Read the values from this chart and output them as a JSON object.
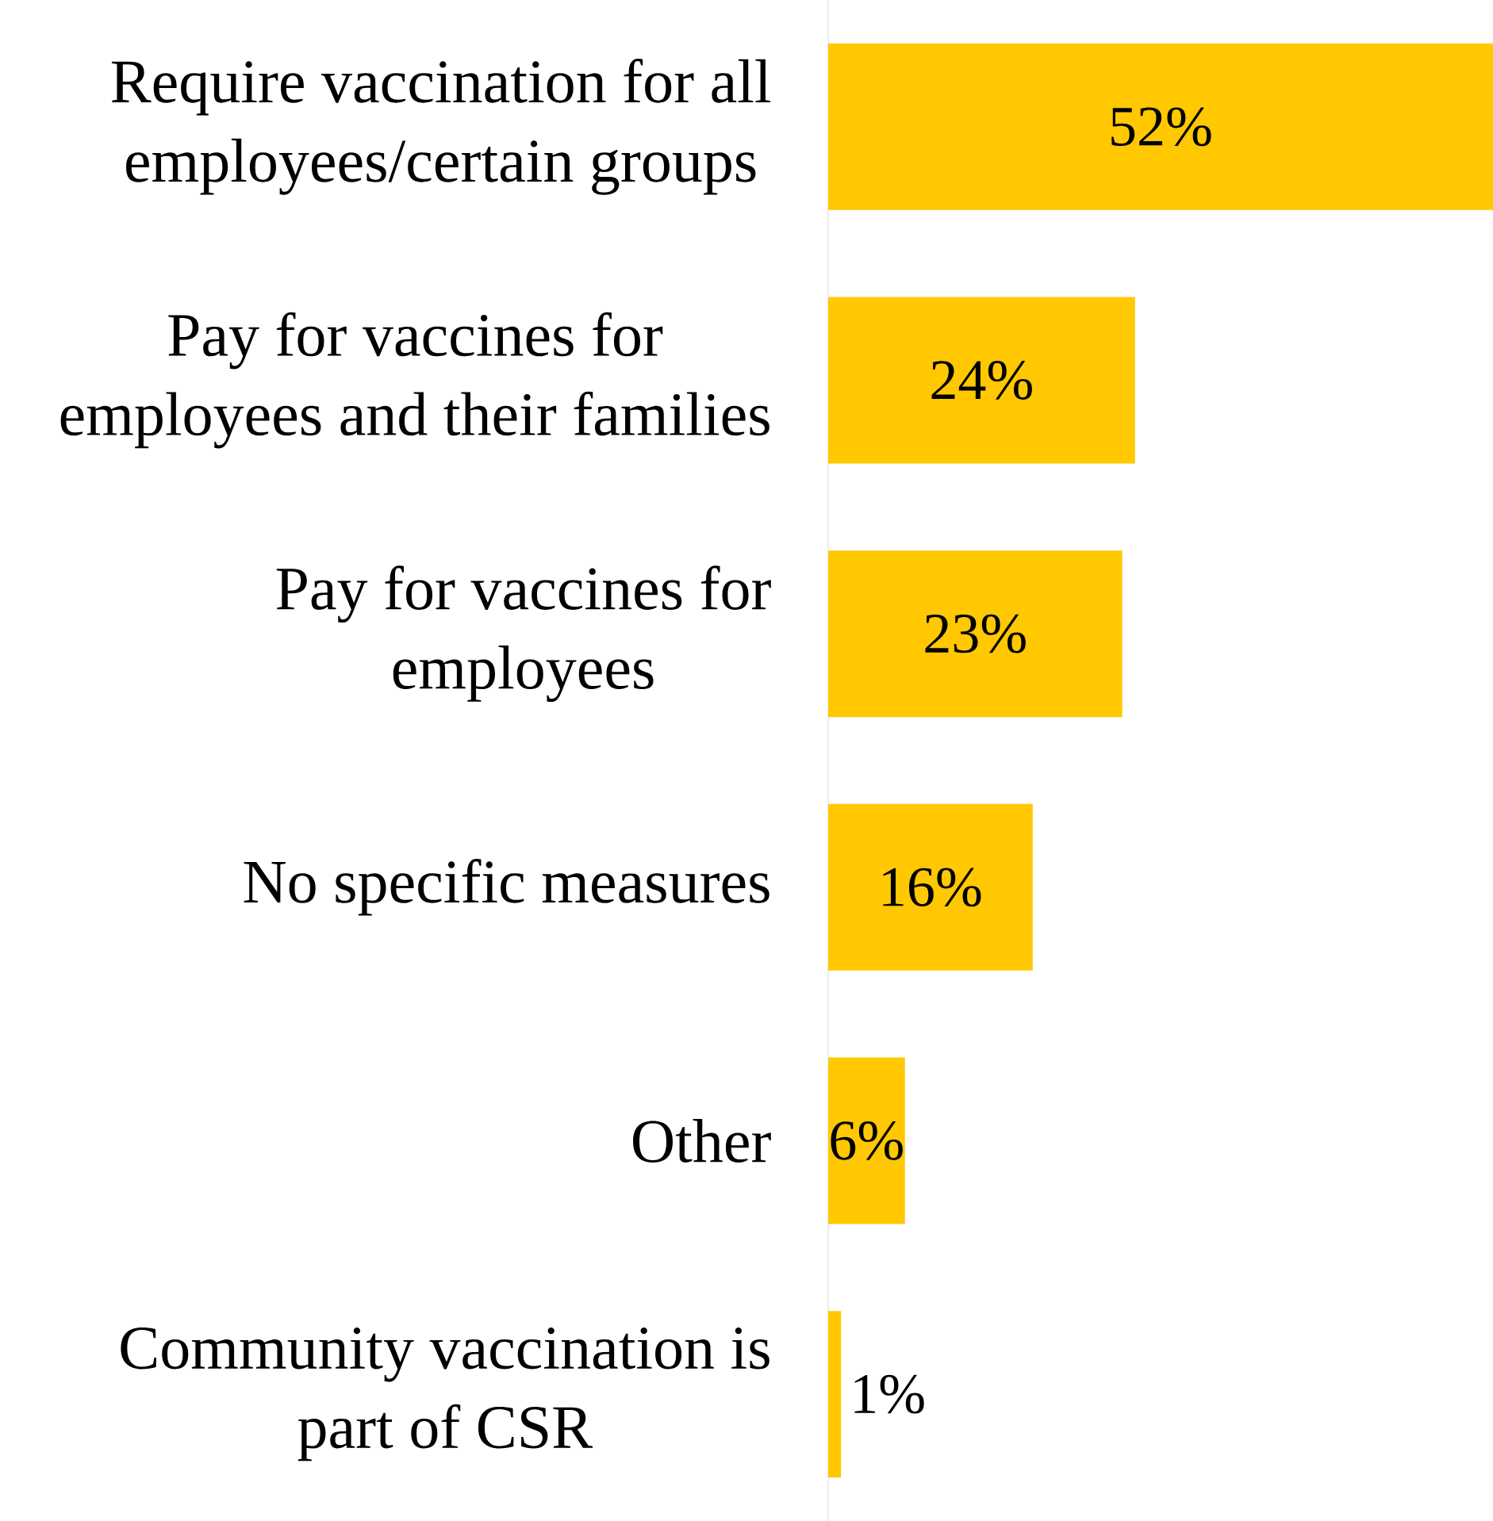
{
  "chart_data": {
    "type": "bar",
    "orientation": "horizontal",
    "categories": [
      "Require vaccination for all employees/certain groups",
      "Pay for vaccines for employees and their families",
      "Pay for vaccines for employees",
      "No specific measures",
      "Other",
      "Community vaccination is part of CSR"
    ],
    "values": [
      52,
      24,
      23,
      16,
      6,
      1
    ],
    "value_labels": [
      "52%",
      "24%",
      "23%",
      "16%",
      "6%",
      "1%"
    ],
    "color": "#ffc800"
  }
}
